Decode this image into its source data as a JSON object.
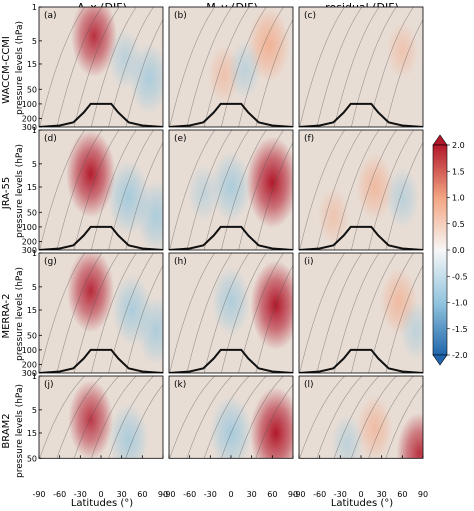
{
  "figure": {
    "column_titles": [
      "A_x (DJF)",
      "M_y (DJF)",
      "residual (DJF)"
    ],
    "row_labels": [
      "WACCM-CCMI",
      "JRA-55",
      "MERRA-2",
      "BRAM2"
    ],
    "ylabel": "pressure levels (hPa)",
    "xlabel": "Latitudes (°)",
    "colors": {
      "positive": "#b2182b",
      "positive_light": "#f4a582",
      "neutral": "#e8ddd5",
      "negative": "#2166ac",
      "negative_light": "#92c5de",
      "contour": "#555555",
      "tropopause": "#111111"
    }
  },
  "chart_data": {
    "type": "heatmap",
    "title": "",
    "xlabel": "Latitudes (°)",
    "ylabel": "pressure levels (hPa)",
    "x_ticks": [
      -90,
      -60,
      -30,
      0,
      30,
      60,
      90
    ],
    "x_ticklabels": [
      "-90",
      "-60",
      "-30",
      "0",
      "30",
      "60",
      "90"
    ],
    "y_ticks": [
      1,
      5,
      15,
      50,
      100,
      200,
      300
    ],
    "y_ticklabels_full": [
      "1",
      "5",
      "15",
      "50",
      "100",
      "200",
      "300"
    ],
    "y_ticklabels_bram2": [
      "1",
      "5",
      "15",
      "50"
    ],
    "y_scale": "log",
    "xlim": [
      -90,
      90
    ],
    "ylim": [
      300,
      1
    ],
    "ylim_bram2": [
      50,
      1
    ],
    "colorbar": {
      "range": [
        -2.0,
        2.0
      ],
      "ticks": [
        "2.0",
        "1.5",
        "1.0",
        "0.5",
        "0.0",
        "-0.5",
        "-1.0",
        "-1.5",
        "-2.0"
      ],
      "extend": "both",
      "colormap": "RdBu_r"
    },
    "panels": [
      {
        "label": "(a)",
        "row": "WACCM-CCMI",
        "column": "A_x (DJF)",
        "blobs": [
          {
            "lat": -10,
            "p": 4,
            "value": 1.5
          },
          {
            "lat": 70,
            "p": 30,
            "value": -1.0
          },
          {
            "lat": 35,
            "p": 12,
            "value": -0.5
          }
        ]
      },
      {
        "label": "(b)",
        "row": "WACCM-CCMI",
        "column": "M_y (DJF)",
        "blobs": [
          {
            "lat": 55,
            "p": 6,
            "value": 1.2
          },
          {
            "lat": -10,
            "p": 25,
            "value": 0.4
          },
          {
            "lat": 20,
            "p": 20,
            "value": -0.4
          }
        ]
      },
      {
        "label": "(c)",
        "row": "WACCM-CCMI",
        "column": "residual (DJF)",
        "blobs": [
          {
            "lat": 60,
            "p": 8,
            "value": 0.3
          }
        ]
      },
      {
        "label": "(d)",
        "row": "JRA-55",
        "column": "A_x (DJF)",
        "blobs": [
          {
            "lat": -15,
            "p": 8,
            "value": 1.8
          },
          {
            "lat": 40,
            "p": 25,
            "value": -1.2
          },
          {
            "lat": 80,
            "p": 60,
            "value": -1.0
          }
        ]
      },
      {
        "label": "(e)",
        "row": "JRA-55",
        "column": "M_y (DJF)",
        "blobs": [
          {
            "lat": 60,
            "p": 12,
            "value": 2.0
          },
          {
            "lat": 0,
            "p": 15,
            "value": -1.0
          },
          {
            "lat": -40,
            "p": 20,
            "value": -0.3
          }
        ]
      },
      {
        "label": "(f)",
        "row": "JRA-55",
        "column": "residual (DJF)",
        "blobs": [
          {
            "lat": 20,
            "p": 15,
            "value": 0.8
          },
          {
            "lat": 60,
            "p": 25,
            "value": -0.5
          },
          {
            "lat": -40,
            "p": 60,
            "value": 0.3
          }
        ]
      },
      {
        "label": "(g)",
        "row": "MERRA-2",
        "column": "A_x (DJF)",
        "blobs": [
          {
            "lat": -15,
            "p": 6,
            "value": 1.6
          },
          {
            "lat": 45,
            "p": 15,
            "value": -1.0
          },
          {
            "lat": 80,
            "p": 40,
            "value": -0.9
          }
        ]
      },
      {
        "label": "(h)",
        "row": "MERRA-2",
        "column": "M_y (DJF)",
        "blobs": [
          {
            "lat": 65,
            "p": 12,
            "value": 1.9
          },
          {
            "lat": 0,
            "p": 10,
            "value": -0.9
          }
        ]
      },
      {
        "label": "(i)",
        "row": "MERRA-2",
        "column": "residual (DJF)",
        "blobs": [
          {
            "lat": 55,
            "p": 10,
            "value": 0.8
          },
          {
            "lat": 80,
            "p": 40,
            "value": -0.4
          }
        ]
      },
      {
        "label": "(j)",
        "row": "BRAM2",
        "column": "A_x (DJF)",
        "blobs": [
          {
            "lat": -15,
            "p": 8,
            "value": 1.4
          },
          {
            "lat": 40,
            "p": 20,
            "value": -1.0
          }
        ]
      },
      {
        "label": "(k)",
        "row": "BRAM2",
        "column": "M_y (DJF)",
        "blobs": [
          {
            "lat": 65,
            "p": 15,
            "value": 2.0
          },
          {
            "lat": 0,
            "p": 15,
            "value": -1.2
          }
        ]
      },
      {
        "label": "(l)",
        "row": "BRAM2",
        "column": "residual (DJF)",
        "blobs": [
          {
            "lat": 20,
            "p": 12,
            "value": 0.7
          },
          {
            "lat": 85,
            "p": 40,
            "value": 1.5
          },
          {
            "lat": -20,
            "p": 25,
            "value": -0.4
          }
        ]
      }
    ],
    "tropopause_lat": [
      -90,
      -60,
      -40,
      -25,
      -15,
      15,
      25,
      40,
      60,
      90
    ],
    "tropopause_p": [
      300,
      280,
      240,
      150,
      100,
      100,
      150,
      240,
      280,
      300
    ]
  }
}
